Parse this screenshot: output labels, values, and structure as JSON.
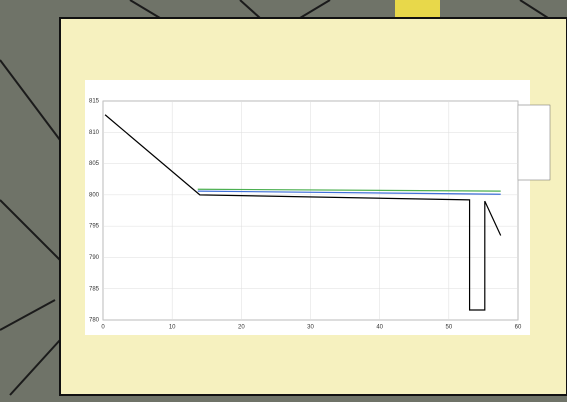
{
  "chart_data": {
    "type": "line",
    "xlim": [
      0,
      60
    ],
    "xticks": [
      0,
      10,
      20,
      30,
      40,
      50,
      60
    ],
    "ylim": [
      780,
      815
    ],
    "yticks": [
      780,
      785,
      790,
      795,
      800,
      805,
      810,
      815
    ],
    "grid": true,
    "series": [
      {
        "color": "#000000",
        "x": [
          0.3,
          14,
          53,
          53,
          55.2,
          55.2,
          57.5
        ],
        "values": [
          812.8,
          800.0,
          799.2,
          781.6,
          781.6,
          799.0,
          793.5
        ]
      },
      {
        "color": "#3f6fd8",
        "x": [
          13.7,
          57.5
        ],
        "values": [
          800.6,
          800.1
        ]
      },
      {
        "color": "#4caf50",
        "x": [
          13.7,
          57.5
        ],
        "values": [
          800.9,
          800.6
        ]
      }
    ]
  }
}
